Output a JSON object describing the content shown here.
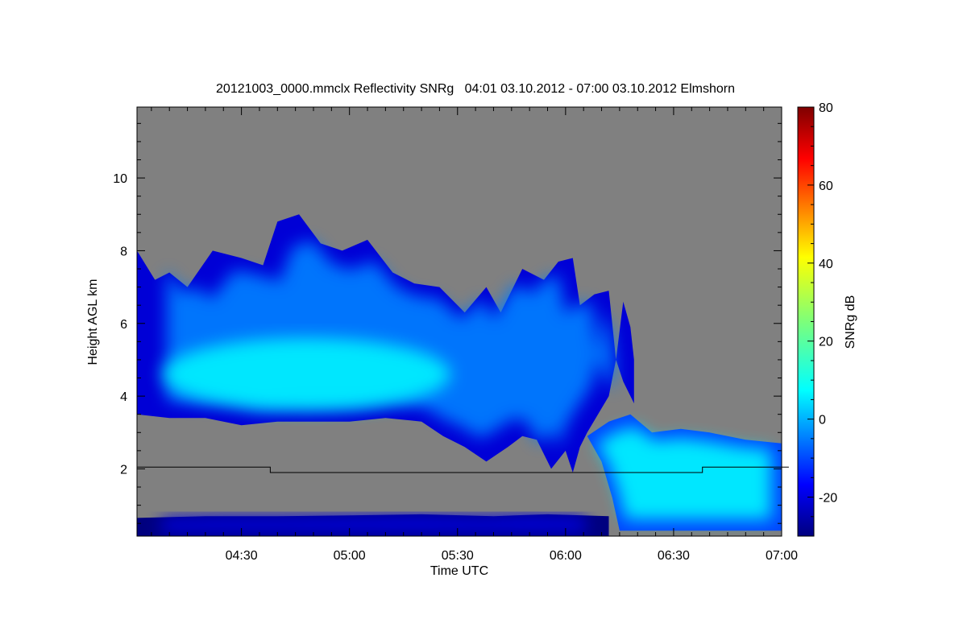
{
  "chart_data": {
    "type": "heatmap",
    "title": "20121003_0000.mmclx Reflectivity SNRg   04:01 03.10.2012 - 07:00 03.10.2012 Elmshorn",
    "xlabel": "Time UTC",
    "ylabel": "Height AGL km",
    "colorbar_label": "SNRg dB",
    "x_range_minutes_utc": [
      241,
      420
    ],
    "y_range_km": [
      0.15,
      11.95
    ],
    "x_ticks": [
      {
        "label": "04:30",
        "minutes": 270
      },
      {
        "label": "05:00",
        "minutes": 300
      },
      {
        "label": "05:30",
        "minutes": 330
      },
      {
        "label": "06:00",
        "minutes": 360
      },
      {
        "label": "06:30",
        "minutes": 390
      },
      {
        "label": "07:00",
        "minutes": 420
      }
    ],
    "y_ticks": [
      {
        "label": "2",
        "value": 2
      },
      {
        "label": "4",
        "value": 4
      },
      {
        "label": "6",
        "value": 6
      },
      {
        "label": "8",
        "value": 8
      },
      {
        "label": "10",
        "value": 10
      }
    ],
    "colorbar_range": [
      -30,
      80
    ],
    "colorbar_ticks": [
      {
        "label": "-20",
        "value": -20
      },
      {
        "label": "0",
        "value": 0
      },
      {
        "label": "20",
        "value": 20
      },
      {
        "label": "40",
        "value": 40
      },
      {
        "label": "60",
        "value": 60
      },
      {
        "label": "80",
        "value": 80
      }
    ],
    "colormap": "jet",
    "background_color": "#808080",
    "threshold_line": {
      "points": [
        [
          241,
          2.05
        ],
        [
          278,
          2.05
        ],
        [
          278,
          1.9
        ],
        [
          398,
          1.9
        ],
        [
          398,
          2.05
        ],
        [
          422,
          2.05
        ]
      ]
    },
    "echo_regions": [
      {
        "name": "upper-layer",
        "top": [
          [
            241,
            8.0
          ],
          [
            246,
            7.2
          ],
          [
            250,
            7.4
          ],
          [
            255,
            7.0
          ],
          [
            262,
            8.0
          ],
          [
            270,
            7.8
          ],
          [
            276,
            7.6
          ],
          [
            280,
            8.8
          ],
          [
            286,
            9.0
          ],
          [
            292,
            8.2
          ],
          [
            298,
            8.0
          ],
          [
            305,
            8.3
          ],
          [
            312,
            7.4
          ],
          [
            318,
            7.1
          ],
          [
            325,
            7.0
          ],
          [
            332,
            6.3
          ],
          [
            338,
            7.0
          ],
          [
            342,
            6.3
          ],
          [
            348,
            7.5
          ],
          [
            354,
            7.2
          ],
          [
            358,
            7.7
          ],
          [
            362,
            7.8
          ],
          [
            364,
            6.5
          ],
          [
            368,
            6.8
          ],
          [
            372,
            6.9
          ],
          [
            374,
            5.0
          ],
          [
            376,
            6.6
          ],
          [
            378,
            5.9
          ],
          [
            379,
            5.0
          ]
        ],
        "bottom": [
          [
            379,
            3.8
          ],
          [
            376,
            4.4
          ],
          [
            374,
            5.0
          ],
          [
            372,
            4.0
          ],
          [
            366,
            3.0
          ],
          [
            364,
            2.6
          ],
          [
            362,
            1.9
          ],
          [
            360,
            2.5
          ],
          [
            356,
            2.0
          ],
          [
            352,
            2.8
          ],
          [
            348,
            2.9
          ],
          [
            344,
            2.6
          ],
          [
            338,
            2.2
          ],
          [
            332,
            2.6
          ],
          [
            326,
            2.9
          ],
          [
            320,
            3.3
          ],
          [
            310,
            3.4
          ],
          [
            300,
            3.3
          ],
          [
            290,
            3.3
          ],
          [
            280,
            3.3
          ],
          [
            270,
            3.2
          ],
          [
            260,
            3.4
          ],
          [
            250,
            3.4
          ],
          [
            241,
            3.5
          ]
        ],
        "snr_db": -5
      },
      {
        "name": "upper-layer-core",
        "cx": 288,
        "cy": 4.6,
        "rx_min": 40,
        "ry_km": 1.0,
        "snr_db": 7
      },
      {
        "name": "rain-shaft",
        "top": [
          [
            366,
            2.9
          ],
          [
            372,
            3.3
          ],
          [
            378,
            3.5
          ],
          [
            384,
            3.0
          ],
          [
            392,
            3.1
          ],
          [
            400,
            3.0
          ],
          [
            410,
            2.8
          ],
          [
            420,
            2.7
          ]
        ],
        "bottom": [
          [
            420,
            0.3
          ],
          [
            412,
            0.3
          ],
          [
            404,
            0.3
          ],
          [
            394,
            0.3
          ],
          [
            384,
            0.3
          ],
          [
            375,
            0.3
          ],
          [
            373,
            1.2
          ],
          [
            370,
            2.2
          ]
        ],
        "snr_db": 6
      },
      {
        "name": "ground-clutter",
        "top": [
          [
            241,
            0.65
          ],
          [
            260,
            0.7
          ],
          [
            280,
            0.7
          ],
          [
            300,
            0.72
          ],
          [
            320,
            0.75
          ],
          [
            340,
            0.7
          ],
          [
            355,
            0.75
          ],
          [
            372,
            0.7
          ]
        ],
        "bottom": [
          [
            372,
            0.15
          ],
          [
            241,
            0.15
          ]
        ],
        "snr_db": -20
      }
    ]
  }
}
